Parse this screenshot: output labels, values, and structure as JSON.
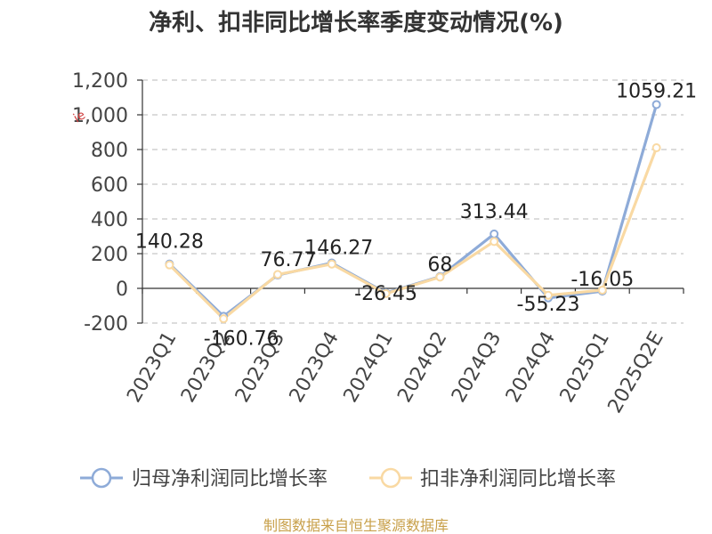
{
  "chart_data": {
    "type": "line",
    "title": "净利、扣非同比增长率季度变动情况(%)",
    "categories": [
      "2023Q1",
      "2023Q2",
      "2023Q3",
      "2023Q4",
      "2024Q1",
      "2024Q2",
      "2024Q3",
      "2024Q4",
      "2025Q1",
      "2025Q2E"
    ],
    "series": [
      {
        "name": "归母净利润同比增长率",
        "color": "#8eabd8",
        "values": [
          140.28,
          -160.76,
          76.77,
          146.27,
          -26.45,
          68,
          313.44,
          -55.23,
          -16.05,
          1059.21
        ],
        "labels": [
          "140.28",
          "-160.76",
          "76.77",
          "146.27",
          "-26.45",
          "68",
          "313.44",
          "-55.23",
          "-16.05",
          "1059.21"
        ]
      },
      {
        "name": "扣非净利润同比增长率",
        "color": "#f9d9a3",
        "values": [
          135,
          -175,
          80,
          140,
          -30,
          65,
          270,
          -40,
          -10,
          810
        ]
      }
    ],
    "yticks": [
      "1,200",
      "1,000",
      "800",
      "600",
      "400",
      "200",
      "0",
      "-200"
    ],
    "ylim": [
      -200,
      1200
    ],
    "grid": true,
    "legend_position": "bottom",
    "source": "制图数据来自恒生聚源数据库",
    "watermark": "ie"
  }
}
